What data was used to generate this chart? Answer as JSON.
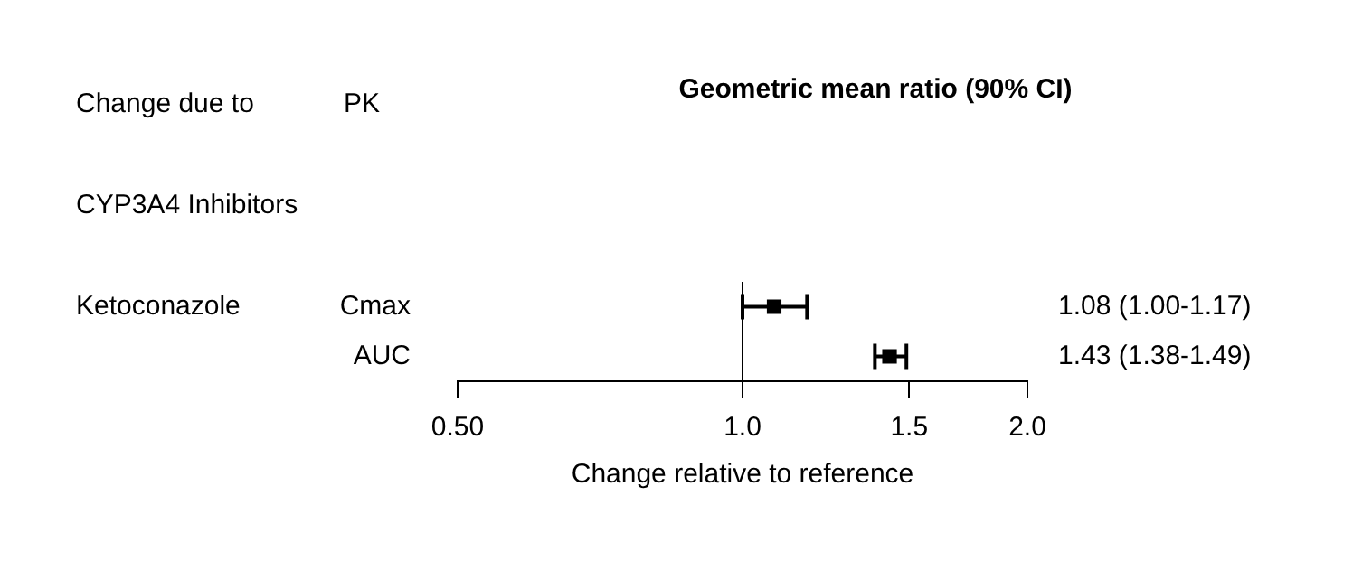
{
  "chart_data": {
    "type": "scatter",
    "orientation": "horizontal",
    "title": "Geometric mean ratio (90% CI)",
    "xlabel": "Change relative to reference",
    "annotations": [
      "Change due to",
      "PK",
      "CYP3A4 Inhibitors",
      "Ketoconazole"
    ],
    "categories": [
      "Cmax",
      "AUC"
    ],
    "values": [
      1.08,
      1.43
    ],
    "errors": [
      [
        1.0,
        1.17
      ],
      [
        1.38,
        1.49
      ]
    ],
    "value_labels": [
      "1.08 (1.00-1.17)",
      "1.43 (1.38-1.49)"
    ],
    "color": "#000000",
    "marker": "square",
    "log": "x",
    "xlim": [
      0.5,
      2.0
    ],
    "xticks": [
      {
        "value": 0.5,
        "label": "0.50"
      },
      {
        "value": 1,
        "label": "1.0"
      },
      1.5,
      {
        "value": 2,
        "label": "2.0"
      }
    ],
    "ref_lines": [
      {
        "axis": "x",
        "value": 1,
        "color": "#000000"
      }
    ]
  }
}
